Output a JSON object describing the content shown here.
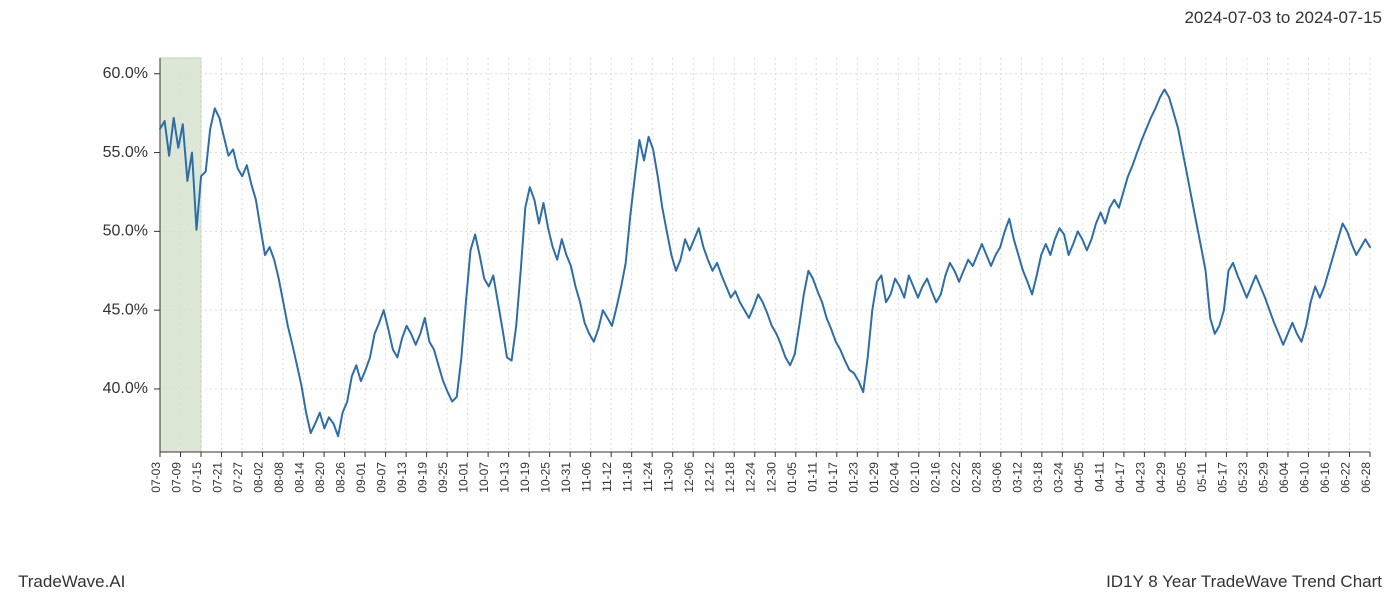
{
  "header": {
    "date_range": "2024-07-03 to 2024-07-15"
  },
  "footer": {
    "left": "TradeWave.AI",
    "right": "ID1Y 8 Year TradeWave Trend Chart"
  },
  "chart": {
    "type": "line",
    "background_color": "#ffffff",
    "plot_border_color": "#333333",
    "grid_color": "#dcdcdc",
    "highlight_band": {
      "x_start_index": 0,
      "x_end_index": 2,
      "fill": "#dce8d5",
      "stroke": "#c0d4b8"
    },
    "line_color": "#2d6ea8",
    "line_width": 2,
    "y_axis": {
      "min": 36,
      "max": 61,
      "ticks": [
        40,
        45,
        50,
        55,
        60
      ],
      "tick_labels": [
        "40.0%",
        "45.0%",
        "50.0%",
        "55.0%",
        "60.0%"
      ],
      "label_fontsize": 16,
      "label_color": "#333333"
    },
    "x_axis": {
      "labels": [
        "07-03",
        "07-09",
        "07-15",
        "07-21",
        "07-27",
        "08-02",
        "08-08",
        "08-14",
        "08-20",
        "08-26",
        "09-01",
        "09-07",
        "09-13",
        "09-19",
        "09-25",
        "10-01",
        "10-07",
        "10-13",
        "10-19",
        "10-25",
        "10-31",
        "11-06",
        "11-12",
        "11-18",
        "11-24",
        "11-30",
        "12-06",
        "12-12",
        "12-18",
        "12-24",
        "12-30",
        "01-05",
        "01-11",
        "01-17",
        "01-23",
        "01-29",
        "02-04",
        "02-10",
        "02-16",
        "02-22",
        "02-28",
        "03-06",
        "03-12",
        "03-18",
        "03-24",
        "04-05",
        "04-11",
        "04-17",
        "04-23",
        "04-29",
        "05-05",
        "05-11",
        "05-17",
        "05-23",
        "05-29",
        "06-04",
        "06-10",
        "06-16",
        "06-22",
        "06-28"
      ],
      "label_fontsize": 12,
      "label_color": "#333333",
      "rotation": -90
    },
    "series": {
      "values": [
        56.5,
        57.0,
        54.8,
        57.2,
        55.3,
        56.8,
        53.2,
        55.0,
        50.1,
        53.5,
        53.8,
        56.5,
        57.8,
        57.2,
        56.0,
        54.8,
        55.2,
        54.0,
        53.5,
        54.2,
        53.0,
        52.0,
        50.2,
        48.5,
        49.0,
        48.2,
        47.0,
        45.5,
        44.0,
        42.8,
        41.5,
        40.2,
        38.5,
        37.2,
        37.8,
        38.5,
        37.5,
        38.2,
        37.8,
        37.0,
        38.5,
        39.2,
        40.8,
        41.5,
        40.5,
        41.2,
        42.0,
        43.5,
        44.2,
        45.0,
        43.8,
        42.5,
        42.0,
        43.2,
        44.0,
        43.5,
        42.8,
        43.5,
        44.5,
        43.0,
        42.5,
        41.5,
        40.5,
        39.8,
        39.2,
        39.5,
        42.0,
        45.5,
        48.8,
        49.8,
        48.5,
        47.0,
        46.5,
        47.2,
        45.5,
        43.8,
        42.0,
        41.8,
        44.0,
        47.5,
        51.5,
        52.8,
        52.0,
        50.5,
        51.8,
        50.2,
        49.0,
        48.2,
        49.5,
        48.5,
        47.8,
        46.5,
        45.5,
        44.2,
        43.5,
        43.0,
        43.8,
        45.0,
        44.5,
        44.0,
        45.2,
        46.5,
        48.0,
        51.0,
        53.5,
        55.8,
        54.5,
        56.0,
        55.2,
        53.5,
        51.5,
        50.0,
        48.5,
        47.5,
        48.2,
        49.5,
        48.8,
        49.5,
        50.2,
        49.0,
        48.2,
        47.5,
        48.0,
        47.2,
        46.5,
        45.8,
        46.2,
        45.5,
        45.0,
        44.5,
        45.2,
        46.0,
        45.5,
        44.8,
        44.0,
        43.5,
        42.8,
        42.0,
        41.5,
        42.2,
        44.0,
        46.0,
        47.5,
        47.0,
        46.2,
        45.5,
        44.5,
        43.8,
        43.0,
        42.5,
        41.8,
        41.2,
        41.0,
        40.5,
        39.8,
        42.0,
        45.0,
        46.8,
        47.2,
        45.5,
        46.0,
        47.0,
        46.5,
        45.8,
        47.2,
        46.5,
        45.8,
        46.5,
        47.0,
        46.2,
        45.5,
        46.0,
        47.2,
        48.0,
        47.5,
        46.8,
        47.5,
        48.2,
        47.8,
        48.5,
        49.2,
        48.5,
        47.8,
        48.5,
        49.0,
        50.0,
        50.8,
        49.5,
        48.5,
        47.5,
        46.8,
        46.0,
        47.2,
        48.5,
        49.2,
        48.5,
        49.5,
        50.2,
        49.8,
        48.5,
        49.2,
        50.0,
        49.5,
        48.8,
        49.5,
        50.5,
        51.2,
        50.5,
        51.5,
        52.0,
        51.5,
        52.5,
        53.5,
        54.2,
        55.0,
        55.8,
        56.5,
        57.2,
        57.8,
        58.5,
        59.0,
        58.5,
        57.5,
        56.5,
        55.0,
        53.5,
        52.0,
        50.5,
        49.0,
        47.5,
        44.5,
        43.5,
        44.0,
        45.0,
        47.5,
        48.0,
        47.2,
        46.5,
        45.8,
        46.5,
        47.2,
        46.5,
        45.8,
        45.0,
        44.2,
        43.5,
        42.8,
        43.5,
        44.2,
        43.5,
        43.0,
        44.0,
        45.5,
        46.5,
        45.8,
        46.5,
        47.5,
        48.5,
        49.5,
        50.5,
        50.0,
        49.2,
        48.5,
        49.0,
        49.5,
        49.0
      ]
    }
  }
}
